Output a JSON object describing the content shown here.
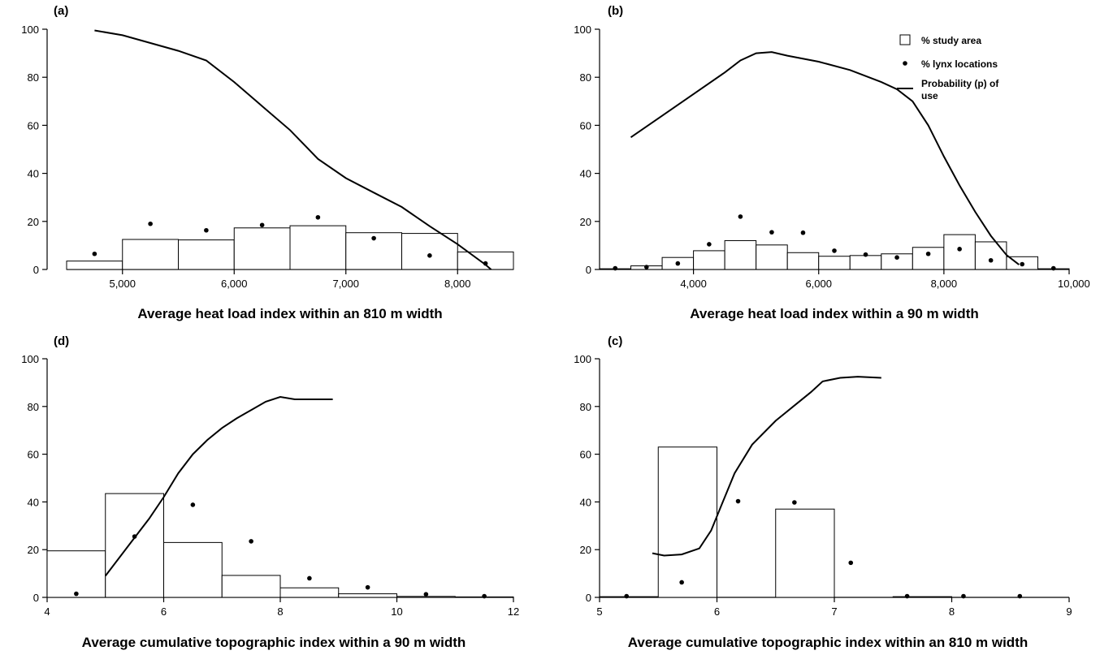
{
  "chart_data": [
    {
      "panel": "(a)",
      "type": "bar",
      "xlabel": "Average heat load index within an 810 m width",
      "ylabel": "",
      "xlim": [
        4500,
        8500
      ],
      "ylim": [
        0,
        100
      ],
      "xticks": [
        5000,
        6000,
        7000,
        8000
      ],
      "xtick_labels": [
        "5,000",
        "6,000",
        "7,000",
        "8,000"
      ],
      "yticks": [
        0,
        20,
        40,
        60,
        80,
        100
      ],
      "ytick_labels": [
        "0",
        "20",
        "40",
        "60",
        "80",
        "100"
      ],
      "study_area_bars": [
        {
          "x0": 4500,
          "x1": 5000,
          "value": 3.5
        },
        {
          "x0": 5000,
          "x1": 5500,
          "value": 12.5
        },
        {
          "x0": 5500,
          "x1": 6000,
          "value": 12.3
        },
        {
          "x0": 6000,
          "x1": 6500,
          "value": 17.3
        },
        {
          "x0": 6500,
          "x1": 7000,
          "value": 18.2
        },
        {
          "x0": 7000,
          "x1": 7500,
          "value": 15.3
        },
        {
          "x0": 7500,
          "x1": 8000,
          "value": 15
        },
        {
          "x0": 8000,
          "x1": 8500,
          "value": 7.3
        }
      ],
      "lynx_points": {
        "x": [
          4750,
          5250,
          5750,
          6250,
          6750,
          7250,
          7750,
          8250
        ],
        "y": [
          6.5,
          19,
          16.3,
          18.5,
          21.7,
          13,
          5.8,
          2.5
        ]
      },
      "probability_curve": {
        "x": [
          4750,
          5000,
          5500,
          5750,
          6000,
          6250,
          6500,
          6750,
          7000,
          7250,
          7500,
          7750,
          8000,
          8250,
          8300
        ],
        "y": [
          99.5,
          97.5,
          91,
          87,
          78,
          68,
          58,
          46,
          38,
          32,
          26,
          18,
          10.5,
          2,
          0
        ]
      }
    },
    {
      "panel": "(b)",
      "type": "bar",
      "xlabel": "Average heat load index within a 90 m width",
      "ylabel": "",
      "xlim": [
        2500,
        10000
      ],
      "ylim": [
        0,
        100
      ],
      "xticks": [
        4000,
        6000,
        8000,
        10000
      ],
      "xtick_labels": [
        "4,000",
        "6,000",
        "8,000",
        "10,000"
      ],
      "yticks": [
        0,
        20,
        40,
        60,
        80,
        100
      ],
      "ytick_labels": [
        "0",
        "20",
        "40",
        "60",
        "80",
        "100"
      ],
      "study_area_bars": [
        {
          "x0": 2500,
          "x1": 3000,
          "value": 0.3
        },
        {
          "x0": 3000,
          "x1": 3500,
          "value": 1.5
        },
        {
          "x0": 3500,
          "x1": 4000,
          "value": 5
        },
        {
          "x0": 4000,
          "x1": 4500,
          "value": 7.8
        },
        {
          "x0": 4500,
          "x1": 5000,
          "value": 12
        },
        {
          "x0": 5000,
          "x1": 5500,
          "value": 10.2
        },
        {
          "x0": 5500,
          "x1": 6000,
          "value": 7
        },
        {
          "x0": 6000,
          "x1": 6500,
          "value": 5.5
        },
        {
          "x0": 6500,
          "x1": 7000,
          "value": 5.8
        },
        {
          "x0": 7000,
          "x1": 7500,
          "value": 6.5
        },
        {
          "x0": 7500,
          "x1": 8000,
          "value": 9.2
        },
        {
          "x0": 8000,
          "x1": 8500,
          "value": 14.5
        },
        {
          "x0": 8500,
          "x1": 9000,
          "value": 11.5
        },
        {
          "x0": 9000,
          "x1": 9500,
          "value": 5.3
        },
        {
          "x0": 9500,
          "x1": 10000,
          "value": 0.3
        }
      ],
      "lynx_points": {
        "x": [
          2750,
          3250,
          3750,
          4250,
          4750,
          5250,
          5750,
          6250,
          6750,
          7250,
          7750,
          8250,
          8750,
          9250,
          9750
        ],
        "y": [
          0.5,
          1,
          2.5,
          10.5,
          22,
          15.5,
          15.3,
          7.8,
          6.2,
          5,
          6.5,
          8.5,
          3.8,
          2.2,
          0.5
        ]
      },
      "probability_curve": {
        "x": [
          3000,
          3500,
          4000,
          4500,
          4750,
          5000,
          5250,
          5500,
          6000,
          6500,
          7000,
          7250,
          7500,
          7750,
          8000,
          8250,
          8500,
          8750,
          9000,
          9200
        ],
        "y": [
          55,
          64,
          73,
          82,
          87,
          90,
          90.5,
          89,
          86.5,
          83,
          78,
          75,
          70,
          60,
          47,
          35,
          24,
          14,
          6,
          2
        ]
      },
      "legend": {
        "placement": "top-right",
        "items": [
          "% study area",
          "% lynx locations",
          "Probability (p) of use"
        ]
      }
    },
    {
      "panel": "(d)",
      "type": "bar",
      "xlabel": "Average cumulative topographic index within a 90 m width",
      "ylabel": "",
      "xlim": [
        4,
        12
      ],
      "ylim": [
        0,
        100
      ],
      "xticks": [
        4,
        6,
        8,
        10,
        12
      ],
      "xtick_labels": [
        "4",
        "6",
        "8",
        "10",
        "12"
      ],
      "yticks": [
        0,
        20,
        40,
        60,
        80,
        100
      ],
      "ytick_labels": [
        "0",
        "20",
        "40",
        "60",
        "80",
        "100"
      ],
      "study_area_bars": [
        {
          "x0": 4,
          "x1": 5,
          "value": 19.5
        },
        {
          "x0": 5,
          "x1": 6,
          "value": 43.5
        },
        {
          "x0": 6,
          "x1": 7,
          "value": 23
        },
        {
          "x0": 7,
          "x1": 8,
          "value": 9.2
        },
        {
          "x0": 8,
          "x1": 9,
          "value": 4
        },
        {
          "x0": 9,
          "x1": 10,
          "value": 1.5
        },
        {
          "x0": 10,
          "x1": 11,
          "value": 0.4
        },
        {
          "x0": 11,
          "x1": 12,
          "value": 0.2
        }
      ],
      "lynx_points": {
        "x": [
          4.5,
          5.5,
          6.5,
          7.5,
          8.5,
          9.5,
          10.5,
          11.5
        ],
        "y": [
          1.5,
          25.5,
          38.8,
          23.5,
          8,
          4.2,
          1.3,
          0.5
        ]
      },
      "probability_curve": {
        "x": [
          5,
          5.25,
          5.5,
          5.75,
          6,
          6.25,
          6.5,
          6.75,
          7,
          7.25,
          7.5,
          7.75,
          8,
          8.25,
          8.5,
          8.9
        ],
        "y": [
          9,
          17,
          25,
          33,
          42,
          52,
          60,
          66,
          71,
          75,
          78.5,
          82,
          84,
          83,
          83,
          83
        ]
      }
    },
    {
      "panel": "(c)",
      "type": "bar",
      "xlabel": "Average cumulative topographic index within an 810 m width",
      "ylabel": "",
      "xlim": [
        5,
        9
      ],
      "ylim": [
        0,
        100
      ],
      "xticks": [
        5,
        6,
        7,
        8,
        9
      ],
      "xtick_labels": [
        "5",
        "6",
        "7",
        "8",
        "9"
      ],
      "yticks": [
        0,
        20,
        40,
        60,
        80,
        100
      ],
      "ytick_labels": [
        "0",
        "20",
        "40",
        "60",
        "80",
        "100"
      ],
      "study_area_bars": [
        {
          "x0": 5,
          "x1": 5.5,
          "value": 0.3
        },
        {
          "x0": 5.5,
          "x1": 6,
          "value": 63
        },
        {
          "x0": 6,
          "x1": 6.5,
          "value": 0
        },
        {
          "x0": 6.5,
          "x1": 7,
          "value": 37
        },
        {
          "x0": 7,
          "x1": 7.5,
          "value": 0
        },
        {
          "x0": 7.5,
          "x1": 8,
          "value": 0.3
        }
      ],
      "lynx_points": {
        "x": [
          5.23,
          5.7,
          6.18,
          6.66,
          7.14,
          7.62,
          8.1,
          8.58
        ],
        "y": [
          0.5,
          6.3,
          40.3,
          39.8,
          14.5,
          0.5,
          0.5,
          0.5
        ]
      },
      "probability_curve": {
        "x": [
          5.45,
          5.55,
          5.7,
          5.85,
          5.95,
          6.05,
          6.15,
          6.3,
          6.5,
          6.65,
          6.8,
          6.9,
          7.05,
          7.2,
          7.4
        ],
        "y": [
          18.5,
          17.5,
          18,
          20.5,
          28,
          40,
          52,
          64,
          74,
          80,
          86,
          90.5,
          92,
          92.5,
          92
        ]
      }
    }
  ]
}
